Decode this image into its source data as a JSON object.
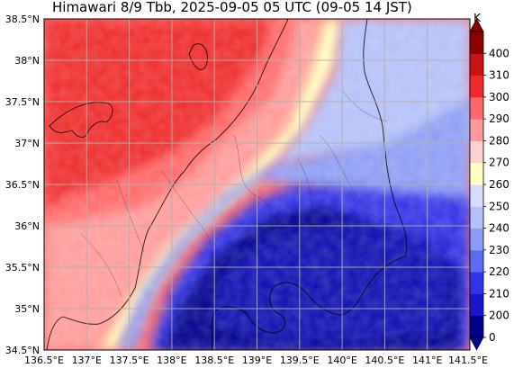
{
  "title": "Himawari 8/9 Tbb, 2025-09-05 05 UTC (09-05 14 JST)",
  "map": {
    "extent": {
      "lon": [
        136.5,
        141.5
      ],
      "lat": [
        34.5,
        38.5
      ]
    },
    "lon_ticks": [
      "136.5°E",
      "137°E",
      "137.5°E",
      "138°E",
      "138.5°E",
      "139°E",
      "139.5°E",
      "140°E",
      "140.5°E",
      "141°E",
      "141.5°E"
    ],
    "lat_ticks": [
      "38.5°N",
      "38°N",
      "37.5°N",
      "37°N",
      "36.5°N",
      "36°N",
      "35.5°N",
      "35°N",
      "34.5°N"
    ],
    "gridlines": true,
    "field": "brightness temperature",
    "pattern": "warm (red) over land in the northwest, cold (blue) cloud over the southeast and ocean"
  },
  "colorbar": {
    "unit": "K",
    "extend": "both",
    "levels": [
      0,
      200,
      210,
      220,
      230,
      240,
      250,
      260,
      270,
      280,
      290,
      300,
      310,
      400
    ],
    "colors": [
      "#00008b",
      "#1717c9",
      "#3232e6",
      "#5c6cf0",
      "#8c9cf4",
      "#b4c0f8",
      "#d8dcfa",
      "#ffffc0",
      "#ffd0d0",
      "#ff9a9a",
      "#ff6868",
      "#ee2a2a",
      "#c81414",
      "#8b0000"
    ],
    "under_color": "#00008b",
    "over_color": "#8b0000"
  }
}
